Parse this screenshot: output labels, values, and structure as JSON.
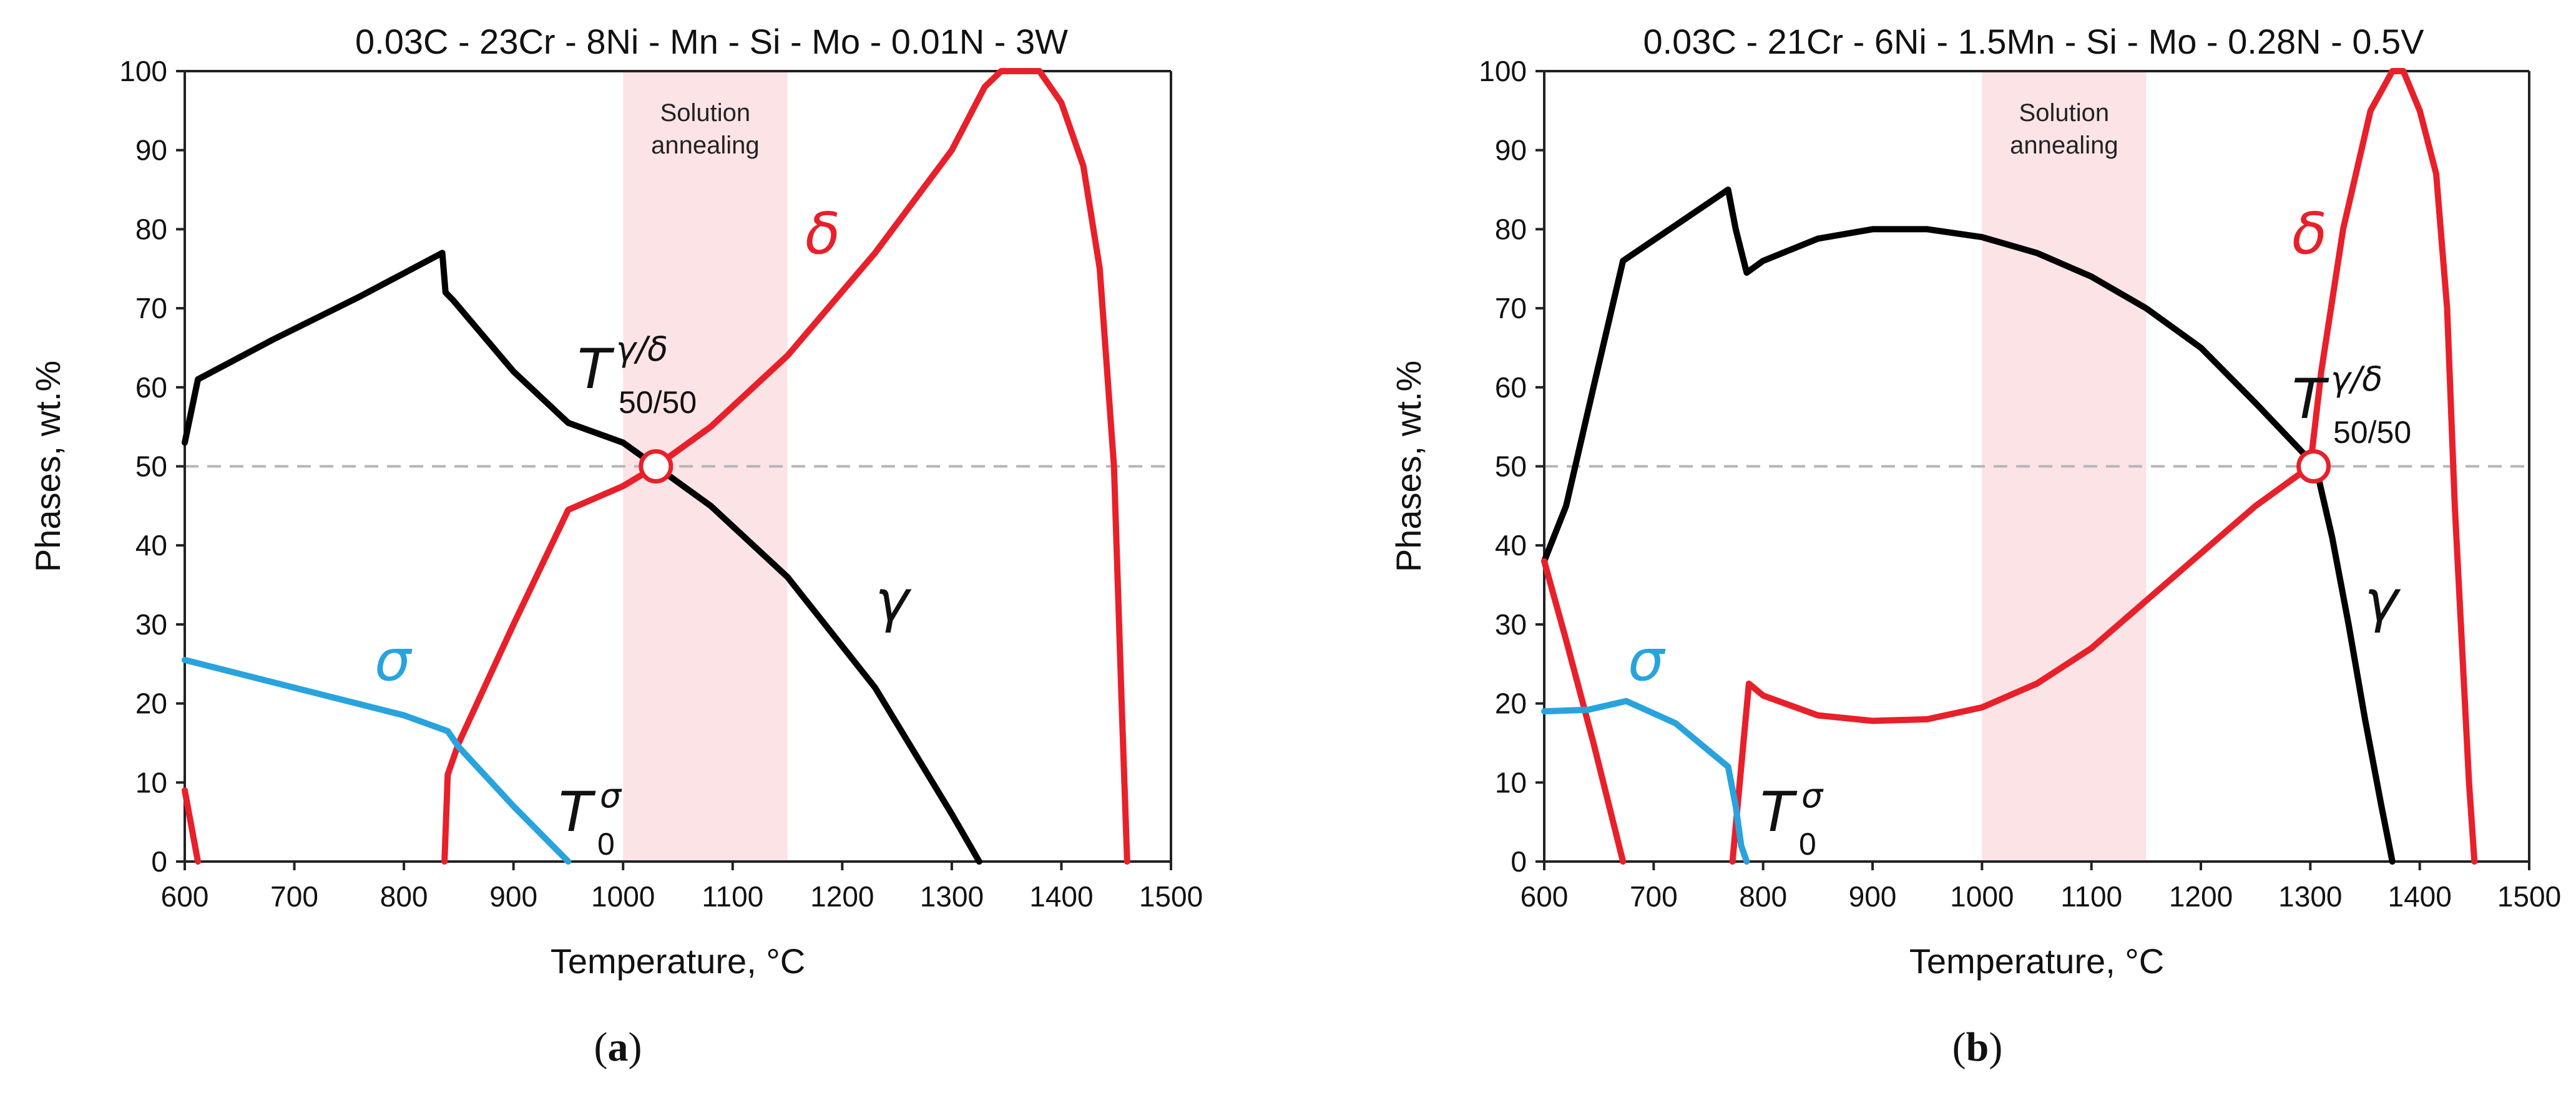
{
  "chart_data": [
    {
      "type": "line",
      "panel_label": "a",
      "title": "0.03C - 23Cr - 8Ni - Mn - Si - Mo - 0.01N - 3W",
      "xlabel": "Temperature, °C",
      "ylabel": "Phases, wt.%",
      "xlim": [
        600,
        1500
      ],
      "ylim": [
        0,
        100
      ],
      "xticks": [
        600,
        700,
        800,
        900,
        1000,
        1100,
        1200,
        1300,
        1400,
        1500
      ],
      "yticks": [
        0,
        10,
        20,
        30,
        40,
        50,
        60,
        70,
        80,
        90,
        100
      ],
      "reference_line_y": 50,
      "band": {
        "x_start": 1000,
        "x_end": 1150,
        "label_line1": "Solution",
        "label_line2": "annealing"
      },
      "series": [
        {
          "name": "γ",
          "color": "#000000",
          "x": [
            600,
            612,
            680,
            760,
            835,
            838,
            845,
            900,
            950,
            1000,
            1030,
            1080,
            1150,
            1230,
            1300,
            1325
          ],
          "y": [
            53,
            61,
            66,
            71.5,
            77,
            72,
            71,
            62,
            55.5,
            53,
            50,
            45,
            36,
            22,
            6,
            0
          ]
        },
        {
          "name": "δ (low-T)",
          "color": "#e8202a",
          "x": [
            600,
            612
          ],
          "y": [
            9,
            0
          ]
        },
        {
          "name": "δ",
          "color": "#e8202a",
          "x": [
            837,
            840,
            850,
            900,
            950,
            1000,
            1030,
            1080,
            1150,
            1230,
            1300,
            1330,
            1345,
            1380,
            1400,
            1420,
            1435,
            1448,
            1455,
            1460
          ],
          "y": [
            0,
            11,
            15,
            30,
            44.5,
            47.5,
            50,
            55,
            64,
            77,
            90,
            98,
            100,
            100,
            96,
            88,
            75,
            50,
            20,
            0
          ]
        },
        {
          "name": "σ",
          "color": "#29a3dd",
          "x": [
            600,
            700,
            800,
            840,
            850,
            900,
            950
          ],
          "y": [
            25.5,
            22,
            18.5,
            16.5,
            14.5,
            7,
            0
          ]
        }
      ],
      "marker": {
        "x": 1030,
        "y": 50
      },
      "annotations": {
        "delta_label": "δ",
        "gamma_label": "γ",
        "sigma_label": "σ",
        "t5050_main": "T",
        "t5050_sup": "γ/δ",
        "t5050_sub": "50/50",
        "t0_main": "T",
        "t0_sub": "0",
        "t0_sup": "σ"
      }
    },
    {
      "type": "line",
      "panel_label": "b",
      "title": "0.03C - 21Cr - 6Ni - 1.5Mn - Si - Mo - 0.28N - 0.5V",
      "xlabel": "Temperature, °C",
      "ylabel": "Phases, wt.%",
      "xlim": [
        600,
        1500
      ],
      "ylim": [
        0,
        100
      ],
      "xticks": [
        600,
        700,
        800,
        900,
        1000,
        1100,
        1200,
        1300,
        1400,
        1500
      ],
      "yticks": [
        0,
        10,
        20,
        30,
        40,
        50,
        60,
        70,
        80,
        90,
        100
      ],
      "reference_line_y": 50,
      "band": {
        "x_start": 1000,
        "x_end": 1150,
        "label_line1": "Solution",
        "label_line2": "annealing"
      },
      "series": [
        {
          "name": "γ",
          "color": "#000000",
          "x": [
            600,
            620,
            645,
            672,
            720,
            768,
            775,
            785,
            800,
            850,
            900,
            950,
            1000,
            1050,
            1100,
            1150,
            1200,
            1250,
            1305,
            1320,
            1335,
            1350,
            1365,
            1375
          ],
          "y": [
            38,
            45,
            60,
            76,
            80.5,
            85,
            80,
            74.5,
            76,
            78.8,
            80,
            80,
            79,
            77,
            74,
            70,
            65,
            58,
            50,
            41,
            30,
            18,
            7,
            0
          ]
        },
        {
          "name": "δ (low-T)",
          "color": "#e8202a",
          "x": [
            600,
            620,
            645,
            672
          ],
          "y": [
            38,
            28,
            15,
            0
          ]
        },
        {
          "name": "δ",
          "color": "#e8202a",
          "x": [
            772,
            780,
            787,
            800,
            850,
            900,
            950,
            1000,
            1050,
            1100,
            1150,
            1200,
            1250,
            1300,
            1310,
            1330,
            1355,
            1375,
            1385,
            1400,
            1415,
            1425,
            1432,
            1445,
            1450
          ],
          "y": [
            0,
            12,
            22.5,
            21,
            18.5,
            17.8,
            18,
            19.5,
            22.5,
            27,
            33,
            39,
            45,
            50,
            62,
            80,
            95,
            100,
            100,
            95,
            87,
            70,
            45,
            10,
            0
          ]
        },
        {
          "name": "σ",
          "color": "#29a3dd",
          "x": [
            600,
            640,
            675,
            720,
            768,
            775,
            780,
            785
          ],
          "y": [
            19,
            19.2,
            20.3,
            17.5,
            12,
            7,
            2,
            0
          ]
        }
      ],
      "marker": {
        "x": 1303,
        "y": 50
      },
      "annotations": {
        "delta_label": "δ",
        "gamma_label": "γ",
        "sigma_label": "σ",
        "t5050_main": "T",
        "t5050_sup": "γ/δ",
        "t5050_sub": "50/50",
        "t0_main": "T",
        "t0_sub": "0",
        "t0_sup": "σ"
      }
    }
  ]
}
